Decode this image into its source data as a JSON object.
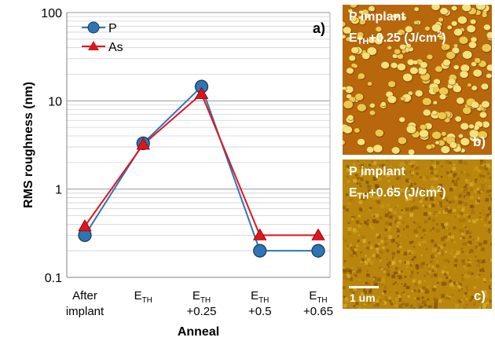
{
  "chart_data": {
    "type": "line",
    "panel_label": "a)",
    "ylabel": "RMS roughness (nm)",
    "xlabel": "Anneal",
    "yscale": "log",
    "ylim": [
      0.1,
      100
    ],
    "yticks": [
      "0.1",
      "1",
      "10",
      "100"
    ],
    "grid": true,
    "legend": "top-left",
    "categories": [
      {
        "line1": "After",
        "line2": "implant"
      },
      {
        "line1": "E",
        "sub": "TH",
        "line2": ""
      },
      {
        "line1": "E",
        "sub": "TH",
        "line2": "+0.25"
      },
      {
        "line1": "E",
        "sub": "TH",
        "line2": "+0.5"
      },
      {
        "line1": "E",
        "sub": "TH",
        "line2": "+0.65"
      }
    ],
    "series": [
      {
        "name": "P",
        "marker": "circle",
        "color": "#2e75b6",
        "values": [
          0.3,
          3.3,
          14.5,
          0.2,
          0.2
        ]
      },
      {
        "name": "As",
        "marker": "triangle",
        "color": "#e0141e",
        "values": [
          0.38,
          3.2,
          12.0,
          0.3,
          0.3
        ]
      }
    ]
  },
  "afm_panels": [
    {
      "title": "P implant",
      "line2_main": "E",
      "line2_sub": "TH",
      "line2_rest": "+0.25 (J/cm",
      "line2_sup": "2",
      "line2_end": ")",
      "letter": "b)"
    },
    {
      "title": "P implant",
      "line2_main": "E",
      "line2_sub": "TH",
      "line2_rest": "+0.65 (J/cm",
      "line2_sup": "2",
      "line2_end": ")",
      "letter": "c)",
      "scale_label": "1 um"
    }
  ]
}
